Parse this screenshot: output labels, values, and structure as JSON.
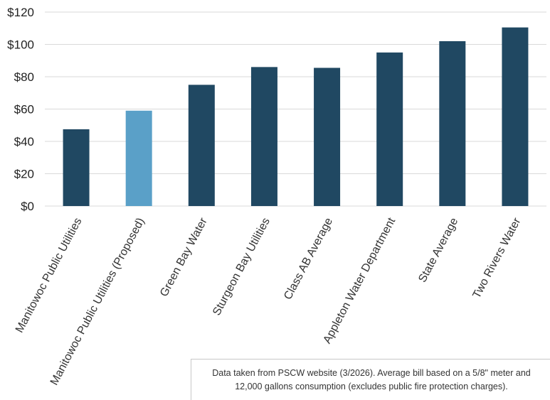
{
  "chart_data": {
    "type": "bar",
    "categories": [
      "Manitowoc Public Utilities",
      "Manitowoc Public Utilities (Proposed)",
      "Green Bay Water",
      "Sturgeon Bay Utilities",
      "Class AB Average",
      "Appleton Water Department",
      "State Average",
      "Two Rivers Water"
    ],
    "values": [
      47.5,
      59,
      75,
      86,
      85.5,
      95,
      102,
      110.5
    ],
    "highlight_index": 1,
    "colors": {
      "bar": "#204862",
      "highlight": "#5aa0c8",
      "grid": "#d9d9d9"
    },
    "ylim": [
      0,
      120
    ],
    "yticks": [
      0,
      20,
      40,
      60,
      80,
      100,
      120
    ],
    "ytick_labels": [
      "$0",
      "$20",
      "$40",
      "$60",
      "$80",
      "$100",
      "$120"
    ],
    "title": "",
    "xlabel": "",
    "ylabel": "",
    "grid": true,
    "legend": "none"
  },
  "footnote": "Data taken from PSCW website (3/2026).  Average bill based on a 5/8\" meter and 12,000 gallons consumption (excludes public fire protection charges)."
}
